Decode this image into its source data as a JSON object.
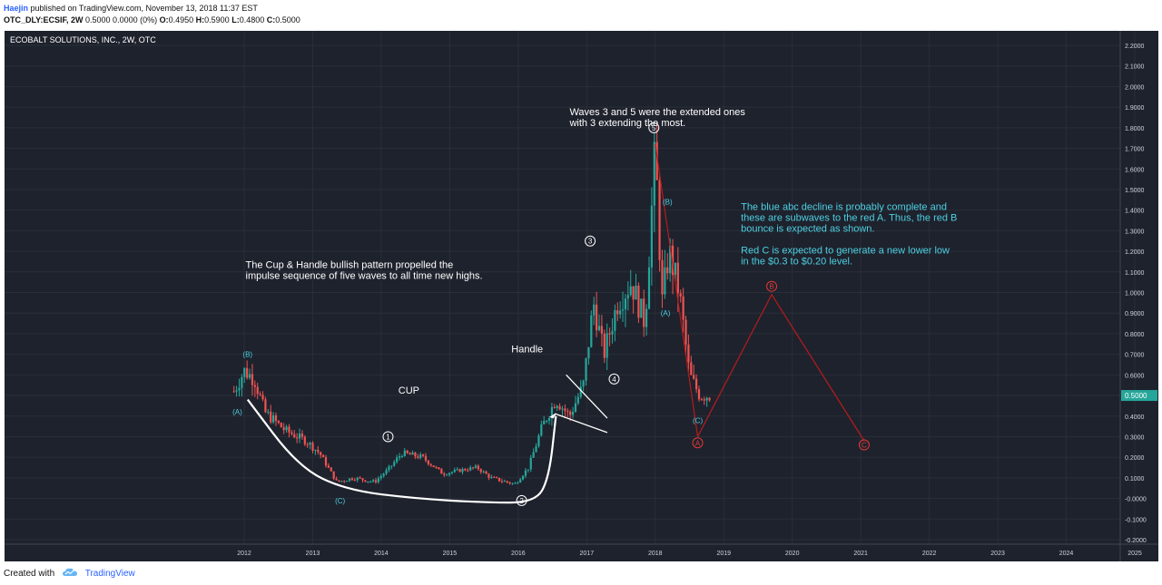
{
  "header": {
    "author": "Haejin",
    "published": "published on TradingView.com, November 13, 2018 11:37 EST",
    "symbol": "OTC_DLY:ECSIF, 2W",
    "change": "0.5000 0.0000 (0%)",
    "open_label": "O:",
    "open": "0.4950",
    "high_label": "H:",
    "high": "0.5900",
    "low_label": "L:",
    "low": "0.4800",
    "close_label": "C:",
    "close": "0.5000"
  },
  "footer": {
    "created_with": "Created with",
    "brand": "TradingView",
    "logo_icon": "tradingview-cloud-icon"
  },
  "colors": {
    "background": "#1e222d",
    "grid": "#2a2e39",
    "up": "#26a69a",
    "down": "#ef5350",
    "wave_red": "#b71c1c",
    "label_cyan": "#4dd0e1",
    "annotation_white": "#ffffff",
    "price_badge": "#26a69a"
  },
  "chart_data": {
    "type": "candlestick",
    "title": "ECOBALT SOLUTIONS, INC., 2W, OTC",
    "x_axis": {
      "ticks": [
        "2012",
        "2013",
        "2014",
        "2015",
        "2016",
        "2017",
        "2018",
        "2019",
        "2020",
        "2021",
        "2022",
        "2023",
        "2024",
        "2025"
      ]
    },
    "y_axis": {
      "ticks": [
        "-0.2000",
        "-0.1000",
        "-0.0000",
        "0.1000",
        "0.2000",
        "0.3000",
        "0.4000",
        "0.5000",
        "0.6000",
        "0.7000",
        "0.8000",
        "0.9000",
        "1.0000",
        "1.1000",
        "1.2000",
        "1.3000",
        "1.4000",
        "1.5000",
        "1.6000",
        "1.7000",
        "1.8000",
        "1.9000",
        "2.0000",
        "2.1000",
        "2.2000"
      ],
      "range": [
        -0.2,
        2.2
      ],
      "last_price_label": "0.5000",
      "last_price": 0.5
    },
    "grid": true,
    "price_path": [
      {
        "t": 2011.85,
        "p": 0.52
      },
      {
        "t": 2012.0,
        "p": 0.62
      },
      {
        "t": 2012.15,
        "p": 0.58
      },
      {
        "t": 2012.3,
        "p": 0.42
      },
      {
        "t": 2012.6,
        "p": 0.33
      },
      {
        "t": 2012.9,
        "p": 0.28
      },
      {
        "t": 2013.1,
        "p": 0.22
      },
      {
        "t": 2013.35,
        "p": 0.08
      },
      {
        "t": 2013.6,
        "p": 0.1
      },
      {
        "t": 2013.9,
        "p": 0.08
      },
      {
        "t": 2014.1,
        "p": 0.14
      },
      {
        "t": 2014.3,
        "p": 0.22
      },
      {
        "t": 2014.6,
        "p": 0.2
      },
      {
        "t": 2014.9,
        "p": 0.12
      },
      {
        "t": 2015.2,
        "p": 0.14
      },
      {
        "t": 2015.4,
        "p": 0.15
      },
      {
        "t": 2015.6,
        "p": 0.1
      },
      {
        "t": 2015.95,
        "p": 0.07
      },
      {
        "t": 2016.15,
        "p": 0.15
      },
      {
        "t": 2016.35,
        "p": 0.35
      },
      {
        "t": 2016.55,
        "p": 0.48
      },
      {
        "t": 2016.75,
        "p": 0.4
      },
      {
        "t": 2016.95,
        "p": 0.55
      },
      {
        "t": 2017.1,
        "p": 0.95
      },
      {
        "t": 2017.25,
        "p": 0.7
      },
      {
        "t": 2017.45,
        "p": 0.95
      },
      {
        "t": 2017.65,
        "p": 1.05
      },
      {
        "t": 2017.85,
        "p": 0.85
      },
      {
        "t": 2018.0,
        "p": 1.7
      },
      {
        "t": 2018.1,
        "p": 0.95
      },
      {
        "t": 2018.2,
        "p": 1.2
      },
      {
        "t": 2018.35,
        "p": 1.0
      },
      {
        "t": 2018.5,
        "p": 0.6
      },
      {
        "t": 2018.65,
        "p": 0.5
      },
      {
        "t": 2018.8,
        "p": 0.5
      }
    ],
    "projection": [
      {
        "t": 2018.62,
        "p": 0.3
      },
      {
        "t": 2019.7,
        "p": 0.99
      },
      {
        "t": 2021.05,
        "p": 0.28
      }
    ],
    "wave_labels": [
      {
        "text": "(A)",
        "t": 2011.9,
        "p": 0.42,
        "color": "cyan",
        "circled": false
      },
      {
        "text": "(B)",
        "t": 2012.05,
        "p": 0.7,
        "color": "cyan",
        "circled": false
      },
      {
        "text": "(C)",
        "t": 2013.4,
        "p": -0.01,
        "color": "cyan",
        "circled": false
      },
      {
        "text": "1",
        "t": 2014.1,
        "p": 0.3,
        "color": "white",
        "circled": true
      },
      {
        "text": "2",
        "t": 2016.05,
        "p": -0.01,
        "color": "white",
        "circled": true
      },
      {
        "text": "3",
        "t": 2017.05,
        "p": 1.25,
        "color": "white",
        "circled": true
      },
      {
        "text": "4",
        "t": 2017.4,
        "p": 0.58,
        "color": "white",
        "circled": true
      },
      {
        "text": "5",
        "t": 2017.98,
        "p": 1.8,
        "color": "white",
        "circled": true
      },
      {
        "text": "(B)",
        "t": 2018.18,
        "p": 1.44,
        "color": "cyan",
        "circled": false
      },
      {
        "text": "(A)",
        "t": 2018.15,
        "p": 0.9,
        "color": "cyan",
        "circled": false
      },
      {
        "text": "(C)",
        "t": 2018.62,
        "p": 0.38,
        "color": "cyan",
        "circled": false
      },
      {
        "text": "A",
        "t": 2018.62,
        "p": 0.27,
        "color": "red",
        "circled": true
      },
      {
        "text": "B",
        "t": 2019.7,
        "p": 1.03,
        "color": "red",
        "circled": true
      },
      {
        "text": "C",
        "t": 2021.05,
        "p": 0.26,
        "color": "red",
        "circled": true
      }
    ],
    "annotations": [
      {
        "lines": [
          "Waves 3 and 5 were the extended ones",
          "with 3 extending the most."
        ],
        "t": 2016.75,
        "p": 1.86,
        "color": "white"
      },
      {
        "lines": [
          "The Cup & Handle bullish pattern propelled the",
          "impulse sequence of five waves to all time new highs."
        ],
        "t": 2012.02,
        "p": 1.12,
        "color": "white"
      },
      {
        "lines": [
          "CUP"
        ],
        "t": 2014.25,
        "p": 0.51,
        "color": "white"
      },
      {
        "lines": [
          "Handle"
        ],
        "t": 2015.9,
        "p": 0.71,
        "color": "white"
      },
      {
        "lines": [
          "The blue abc decline is probably complete and",
          "these are subwaves to the red A. Thus, the red B",
          "bounce is expected as shown.",
          "",
          "Red C is expected to generate a new lower low",
          "in the $0.3 to $0.20 level."
        ],
        "t": 2019.25,
        "p": 1.4,
        "color": "cyan"
      }
    ],
    "cup_curve": [
      {
        "t": 2012.05,
        "p": 0.48
      },
      {
        "t": 2012.8,
        "p": 0.15
      },
      {
        "t": 2013.5,
        "p": 0.04
      },
      {
        "t": 2014.5,
        "p": 0.0
      },
      {
        "t": 2015.5,
        "p": -0.02
      },
      {
        "t": 2016.25,
        "p": -0.02
      },
      {
        "t": 2016.45,
        "p": 0.1
      },
      {
        "t": 2016.55,
        "p": 0.4
      }
    ],
    "handle_lines": [
      [
        {
          "t": 2016.7,
          "p": 0.6
        },
        {
          "t": 2017.3,
          "p": 0.39
        }
      ],
      [
        {
          "t": 2016.55,
          "p": 0.41
        },
        {
          "t": 2017.3,
          "p": 0.32
        }
      ]
    ]
  }
}
